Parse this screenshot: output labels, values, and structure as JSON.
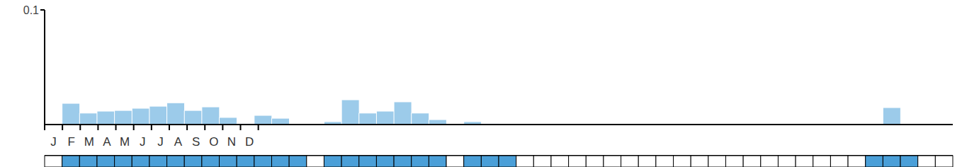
{
  "chart_data": {
    "type": "bar",
    "months": [
      "J",
      "F",
      "M",
      "A",
      "M",
      "J",
      "J",
      "A",
      "S",
      "O",
      "N",
      "D"
    ],
    "values": [
      0,
      0.0185,
      0.01,
      0.0117,
      0.0123,
      0.0142,
      0.016,
      0.019,
      0.0123,
      0.0154,
      0.0062,
      0.001,
      0.008,
      0.0055,
      0,
      0,
      0.0025,
      0.0216,
      0.01,
      0.0117,
      0.0198,
      0.01,
      0.0043,
      0,
      0.0025,
      0.001,
      0,
      0,
      0,
      0,
      0,
      0,
      0,
      0,
      0,
      0,
      0,
      0,
      0,
      0,
      0,
      0,
      0,
      0,
      0,
      0,
      0,
      0,
      0.0148,
      0,
      0,
      0
    ],
    "recorded": [
      false,
      true,
      true,
      true,
      true,
      true,
      true,
      true,
      true,
      true,
      true,
      true,
      true,
      true,
      true,
      false,
      true,
      true,
      true,
      true,
      true,
      true,
      true,
      false,
      true,
      true,
      true,
      false,
      false,
      false,
      false,
      false,
      false,
      false,
      false,
      false,
      false,
      false,
      false,
      false,
      false,
      false,
      false,
      false,
      false,
      false,
      false,
      true,
      true,
      true,
      false,
      false
    ],
    "color": "#9ccbea",
    "recorded_color": "#4a9fd8",
    "ylim": [
      0,
      0.1
    ],
    "yticks": [
      0.1
    ]
  }
}
